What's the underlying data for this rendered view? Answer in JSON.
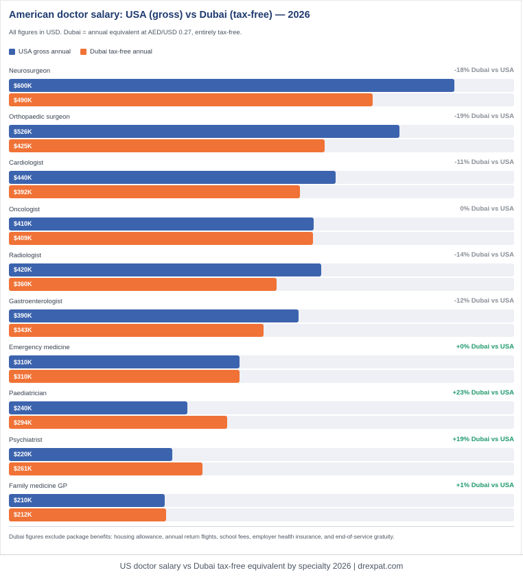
{
  "colors": {
    "usa": "#3c63ad",
    "dubai": "#f07236",
    "negative_delta": "#8a8f98",
    "positive_delta": "#1f9a6c",
    "track": "#eef0f5"
  },
  "chart_data": {
    "type": "bar",
    "orientation": "horizontal",
    "title": "American doctor salary: USA (gross) vs Dubai (tax-free) — 2026",
    "subtitle": "All figures in USD. Dubai = annual equivalent at AED/USD 0.27, entirely tax-free.",
    "legend_position": "top-left",
    "xlim": [
      0,
      680
    ],
    "grid": false,
    "categories": [
      "Neurosurgeon",
      "Orthopaedic surgeon",
      "Cardiologist",
      "Oncologist",
      "Radiologist",
      "Gastroenterologist",
      "Emergency medicine",
      "Paediatrician",
      "Psychiatrist",
      "Family medicine GP"
    ],
    "series": [
      {
        "name": "USA gross annual",
        "values": [
          600,
          526,
          440,
          410,
          420,
          390,
          310,
          240,
          220,
          210
        ],
        "labels": [
          "$600K",
          "$526K",
          "$440K",
          "$410K",
          "$420K",
          "$390K",
          "$310K",
          "$240K",
          "$220K",
          "$210K"
        ]
      },
      {
        "name": "Dubai tax-free annual",
        "values": [
          490,
          425,
          392,
          409,
          360,
          343,
          310,
          294,
          261,
          212
        ],
        "labels": [
          "$490K",
          "$425K",
          "$392K",
          "$409K",
          "$360K",
          "$343K",
          "$310K",
          "$294K",
          "$261K",
          "$212K"
        ]
      }
    ],
    "annotations": [
      "-18% Dubai vs USA",
      "-19% Dubai vs USA",
      "-11% Dubai vs USA",
      "0% Dubai vs USA",
      "-14% Dubai vs USA",
      "-12% Dubai vs USA",
      "+0% Dubai vs USA",
      "+23% Dubai vs USA",
      "+19% Dubai vs USA",
      "+1% Dubai vs USA"
    ],
    "footnote": "Dubai figures exclude package benefits: housing allowance, annual return flights, school fees, employer health insurance, and end-of-service gratuity."
  },
  "caption": "US doctor salary vs Dubai tax-free equivalent by specialty 2026 | drexpat.com"
}
